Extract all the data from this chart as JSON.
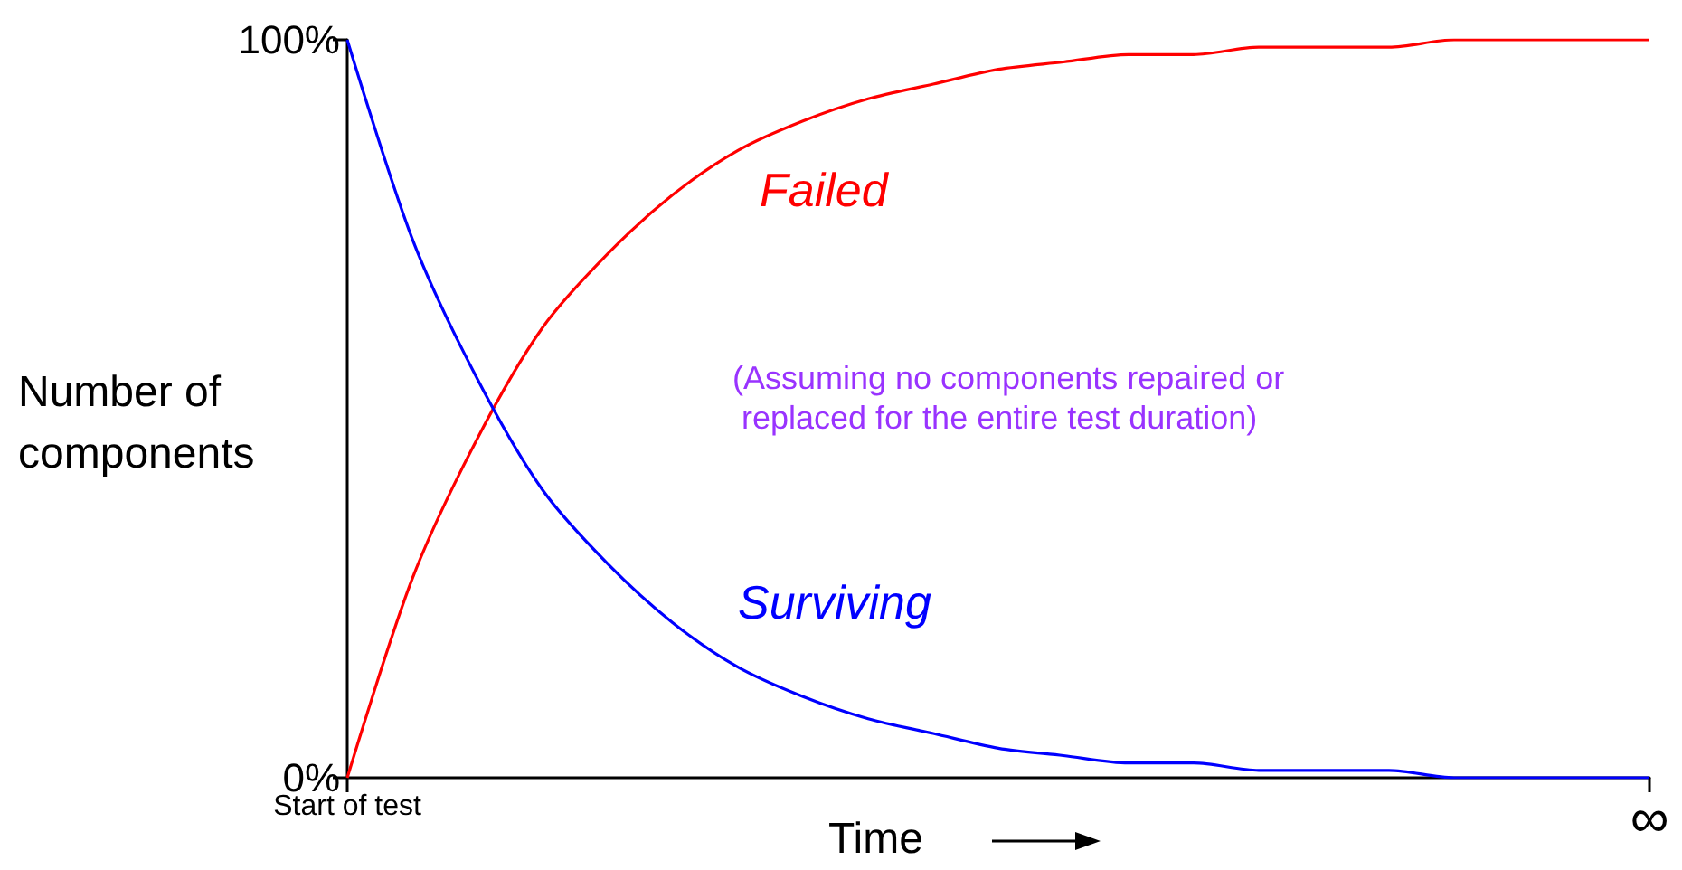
{
  "chart_data": {
    "type": "line",
    "xlabel": "Time",
    "ylabel": "Number of components",
    "categories": [
      "Start of test",
      null,
      null,
      null,
      null,
      null,
      null,
      null,
      null,
      null,
      null,
      null,
      null,
      null,
      null,
      null,
      null,
      null,
      null,
      null,
      "∞"
    ],
    "series": [
      {
        "name": "Failed",
        "color": "#ff0000",
        "values": [
          0,
          27,
          46,
          61,
          71,
          79,
          85,
          89,
          92,
          94,
          96,
          97,
          98,
          98,
          99,
          99,
          99,
          100,
          100,
          100,
          100
        ]
      },
      {
        "name": "Surviving",
        "color": "#0000ff",
        "values": [
          100,
          73,
          54,
          39,
          29,
          21,
          15,
          11,
          8,
          6,
          4,
          3,
          2,
          2,
          1,
          1,
          1,
          0,
          0,
          0,
          0
        ]
      }
    ],
    "ylim": [
      0,
      100
    ],
    "yticks": [
      {
        "value": 0,
        "label": "0%"
      },
      {
        "value": 100,
        "label": "100%"
      }
    ],
    "annotations": [
      "(Assuming no components repaired or\n replaced for the entire test duration)"
    ],
    "grid": false,
    "legend": false,
    "marker": "none",
    "line_style": "solid"
  }
}
